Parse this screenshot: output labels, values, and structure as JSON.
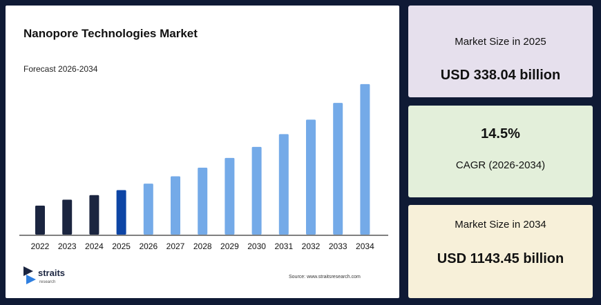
{
  "chart_data": {
    "type": "bar",
    "title": "Nanopore Technologies Market",
    "subtitle": "Forecast 2026-2034",
    "categories": [
      "2022",
      "2023",
      "2024",
      "2025",
      "2026",
      "2027",
      "2028",
      "2029",
      "2030",
      "2031",
      "2032",
      "2033",
      "2034"
    ],
    "values": [
      220,
      265,
      300,
      338,
      387,
      443,
      508,
      582,
      666,
      763,
      873,
      1000,
      1143
    ],
    "colors": [
      "#1b2540",
      "#1b2540",
      "#1b2540",
      "#0d45a5",
      "#74aae8",
      "#74aae8",
      "#74aae8",
      "#74aae8",
      "#74aae8",
      "#74aae8",
      "#74aae8",
      "#74aae8",
      "#74aae8"
    ],
    "ylim": [
      0,
      1200
    ]
  },
  "cards": [
    {
      "label": "Market Size in 2025",
      "value": "USD 338.04 billion"
    },
    {
      "value": "14.5%",
      "label": "CAGR (2026-2034)"
    },
    {
      "label": "Market Size in 2034",
      "value": "USD 1143.45 billion"
    }
  ],
  "logo": {
    "name": "straits",
    "tagline": "research"
  },
  "source": "Source: www.straitsresearch.com"
}
